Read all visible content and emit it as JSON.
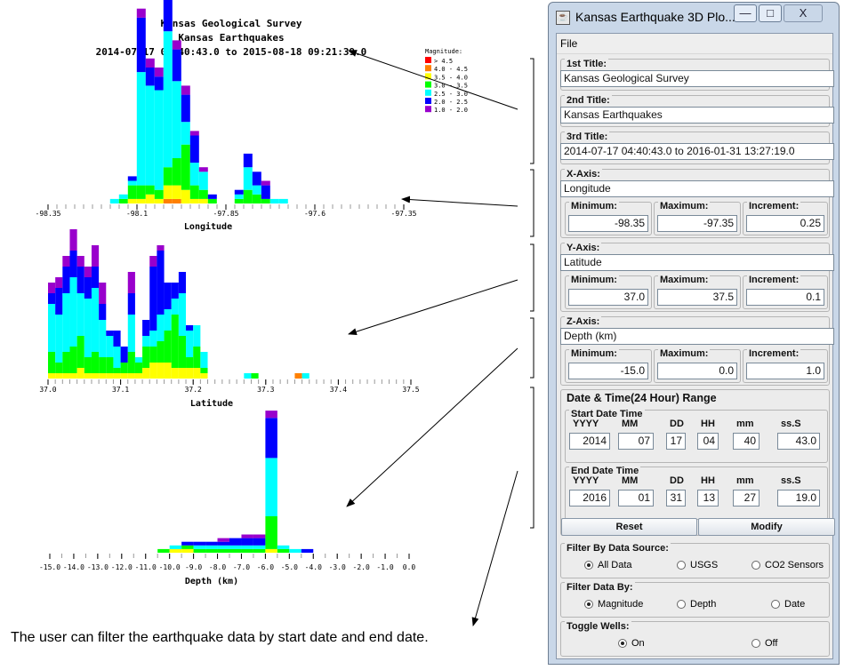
{
  "window": {
    "title": "Kansas Earthquake 3D Plo...",
    "minimize": "—",
    "maximize": "□",
    "close": "X",
    "menu_file": "File"
  },
  "plot_titles": {
    "line1": "Kansas Geological Survey",
    "line2": "Kansas Earthquakes",
    "line3": "2014-07-17 04:40:43.0 to 2015-08-18 09:21:39.0"
  },
  "legend": {
    "title": "Magnitude:",
    "items": [
      {
        "label": "> 4.5",
        "color": "#ff0000"
      },
      {
        "label": "4.0 - 4.5",
        "color": "#ff8000"
      },
      {
        "label": "3.5 - 4.0",
        "color": "#ffff00"
      },
      {
        "label": "3.0 - 3.5",
        "color": "#00ff00"
      },
      {
        "label": "2.5 - 3.0",
        "color": "#00ffff"
      },
      {
        "label": "2.0 - 2.5",
        "color": "#0000ff"
      },
      {
        "label": "1.0 - 2.0",
        "color": "#9900cc"
      }
    ]
  },
  "caption": "The user can filter the earthquake data by start date and end date.",
  "form": {
    "title1": {
      "label": "1st Title:",
      "value": "Kansas Geological Survey"
    },
    "title2": {
      "label": "2nd Title:",
      "value": "Kansas Earthquakes"
    },
    "title3": {
      "label": "3rd Title:",
      "value": "2014-07-17 04:40:43.0 to 2016-01-31 13:27:19.0"
    },
    "x_axis": {
      "label": "X-Axis:",
      "value": "Longitude",
      "min_label": "Minimum:",
      "min": "-98.35",
      "max_label": "Maximum:",
      "max": "-97.35",
      "inc_label": "Increment:",
      "inc": "0.25"
    },
    "y_axis": {
      "label": "Y-Axis:",
      "value": "Latitude",
      "min_label": "Minimum:",
      "min": "37.0",
      "max_label": "Maximum:",
      "max": "37.5",
      "inc_label": "Increment:",
      "inc": "0.1"
    },
    "z_axis": {
      "label": "Z-Axis:",
      "value": "Depth (km)",
      "min_label": "Minimum:",
      "min": "-15.0",
      "max_label": "Maximum:",
      "max": "0.0",
      "inc_label": "Increment:",
      "inc": "1.0"
    },
    "datetime": {
      "label": "Date & Time(24 Hour) Range",
      "start_label": "Start Date Time",
      "end_label": "End Date Time",
      "col_labels": [
        "YYYY",
        "MM",
        "DD",
        "HH",
        "mm",
        "ss.S"
      ],
      "start": [
        "2014",
        "07",
        "17",
        "04",
        "40",
        "43.0"
      ],
      "end": [
        "2016",
        "01",
        "31",
        "13",
        "27",
        "19.0"
      ]
    },
    "reset": "Reset",
    "modify": "Modify",
    "filter_source": {
      "label": "Filter By Data Source:",
      "options": [
        "All Data",
        "USGS",
        "CO2 Sensors"
      ],
      "selected": 0
    },
    "filter_by": {
      "label": "Filter Data By:",
      "options": [
        "Magnitude",
        "Depth",
        "Date"
      ],
      "selected": 0
    },
    "toggle_wells": {
      "label": "Toggle Wells:",
      "options": [
        "On",
        "Off"
      ],
      "selected": 0
    }
  },
  "chart_data": [
    {
      "type": "bar",
      "stacked": true,
      "xlabel": "Longitude",
      "xlim": [
        -98.35,
        -97.35
      ],
      "tick_labels": [
        "-98.35",
        "-98.1",
        "-97.85",
        "-97.6",
        "-97.35"
      ],
      "bin_width": 0.025,
      "series_order": [
        "> 4.5",
        "4.0 - 4.5",
        "3.5 - 4.0",
        "3.0 - 3.5",
        "2.5 - 3.0",
        "2.0 - 2.5",
        "1.0 - 2.0"
      ],
      "bins": [
        {
          "x": -98.163,
          "v": [
            0,
            0,
            0,
            0,
            1,
            0,
            0
          ]
        },
        {
          "x": -98.138,
          "v": [
            0,
            0,
            0,
            1,
            1,
            0,
            0
          ]
        },
        {
          "x": -98.113,
          "v": [
            0,
            0,
            1,
            3,
            1,
            1,
            0
          ]
        },
        {
          "x": -98.088,
          "v": [
            0,
            0,
            1,
            3,
            25,
            12,
            2
          ]
        },
        {
          "x": -98.063,
          "v": [
            0,
            0,
            2,
            2,
            22,
            4,
            2
          ]
        },
        {
          "x": -98.038,
          "v": [
            0,
            0,
            1,
            2,
            22,
            3,
            2
          ]
        },
        {
          "x": -98.013,
          "v": [
            0,
            1,
            3,
            4,
            30,
            12,
            0
          ]
        },
        {
          "x": -97.988,
          "v": [
            0,
            1,
            3,
            6,
            17,
            7,
            2
          ]
        },
        {
          "x": -97.963,
          "v": [
            0,
            0,
            3,
            10,
            5,
            6,
            2
          ]
        },
        {
          "x": -97.938,
          "v": [
            0,
            0,
            1,
            3,
            5,
            6,
            1
          ]
        },
        {
          "x": -97.913,
          "v": [
            0,
            0,
            1,
            2,
            4,
            0,
            1
          ]
        },
        {
          "x": -97.888,
          "v": [
            0,
            0,
            0,
            1,
            0,
            1,
            0
          ]
        },
        {
          "x": -97.813,
          "v": [
            0,
            0,
            0,
            1,
            1,
            1,
            0
          ]
        },
        {
          "x": -97.788,
          "v": [
            0,
            0,
            0,
            3,
            5,
            3,
            0
          ]
        },
        {
          "x": -97.763,
          "v": [
            0,
            0,
            0,
            2,
            2,
            3,
            0
          ]
        },
        {
          "x": -97.738,
          "v": [
            0,
            0,
            0,
            1,
            0,
            3,
            1
          ]
        },
        {
          "x": -97.713,
          "v": [
            0,
            0,
            0,
            0,
            1,
            0,
            0
          ]
        },
        {
          "x": -97.688,
          "v": [
            0,
            0,
            0,
            0,
            1,
            0,
            0
          ]
        }
      ]
    },
    {
      "type": "bar",
      "stacked": true,
      "xlabel": "Latitude",
      "xlim": [
        37.0,
        37.5
      ],
      "tick_labels": [
        "37.0",
        "37.1",
        "37.2",
        "37.3",
        "37.4",
        "37.5"
      ],
      "bin_width": 0.01,
      "series_order": [
        "> 4.5",
        "4.0 - 4.5",
        "3.5 - 4.0",
        "3.0 - 3.5",
        "2.5 - 3.0",
        "2.0 - 2.5",
        "1.0 - 2.0"
      ],
      "bins": [
        {
          "x": 37.005,
          "v": [
            0,
            0,
            1,
            4,
            9,
            2,
            2
          ]
        },
        {
          "x": 37.015,
          "v": [
            0,
            0,
            1,
            2,
            9,
            5,
            2
          ]
        },
        {
          "x": 37.025,
          "v": [
            0,
            0,
            1,
            4,
            11,
            5,
            2
          ]
        },
        {
          "x": 37.035,
          "v": [
            0,
            0,
            1,
            5,
            13,
            5,
            4
          ]
        },
        {
          "x": 37.045,
          "v": [
            0,
            0,
            2,
            6,
            8,
            5,
            2
          ]
        },
        {
          "x": 37.055,
          "v": [
            0,
            0,
            1,
            3,
            11,
            4,
            2
          ]
        },
        {
          "x": 37.065,
          "v": [
            0,
            0,
            1,
            4,
            12,
            4,
            4
          ]
        },
        {
          "x": 37.075,
          "v": [
            0,
            0,
            1,
            3,
            7,
            3,
            4
          ]
        },
        {
          "x": 37.085,
          "v": [
            0,
            0,
            1,
            3,
            4,
            1,
            0
          ]
        },
        {
          "x": 37.095,
          "v": [
            0,
            0,
            1,
            1,
            4,
            3,
            0
          ]
        },
        {
          "x": 37.105,
          "v": [
            0,
            0,
            1,
            2,
            0,
            3,
            0
          ]
        },
        {
          "x": 37.115,
          "v": [
            0,
            0,
            1,
            4,
            7,
            4,
            4
          ]
        },
        {
          "x": 37.125,
          "v": [
            0,
            0,
            1,
            2,
            1,
            0,
            0
          ]
        },
        {
          "x": 37.135,
          "v": [
            0,
            0,
            2,
            4,
            2,
            3,
            0
          ]
        },
        {
          "x": 37.145,
          "v": [
            0,
            0,
            3,
            3,
            3,
            12,
            2
          ]
        },
        {
          "x": 37.155,
          "v": [
            0,
            0,
            3,
            4,
            5,
            12,
            1
          ]
        },
        {
          "x": 37.165,
          "v": [
            0,
            0,
            3,
            6,
            4,
            5,
            0
          ]
        },
        {
          "x": 37.175,
          "v": [
            0,
            0,
            2,
            10,
            3,
            3,
            0
          ]
        },
        {
          "x": 37.185,
          "v": [
            0,
            0,
            2,
            6,
            8,
            4,
            0
          ]
        },
        {
          "x": 37.195,
          "v": [
            0,
            0,
            2,
            2,
            5,
            1,
            0
          ]
        },
        {
          "x": 37.205,
          "v": [
            0,
            0,
            2,
            4,
            4,
            0,
            0
          ]
        },
        {
          "x": 37.215,
          "v": [
            0,
            0,
            1,
            1,
            3,
            0,
            0
          ]
        },
        {
          "x": 37.275,
          "v": [
            0,
            0,
            0,
            0,
            1,
            0,
            0
          ]
        },
        {
          "x": 37.285,
          "v": [
            0,
            0,
            0,
            1,
            0,
            0,
            0
          ]
        },
        {
          "x": 37.345,
          "v": [
            0,
            1,
            0,
            0,
            0,
            0,
            0
          ]
        },
        {
          "x": 37.355,
          "v": [
            0,
            0,
            0,
            0,
            1,
            0,
            0
          ]
        }
      ]
    },
    {
      "type": "bar",
      "stacked": true,
      "xlabel": "Depth (km)",
      "xlim": [
        -15.0,
        0.0
      ],
      "tick_labels": [
        "-15.0",
        "-14.0",
        "-13.0",
        "-12.0",
        "-11.0",
        "-10.0",
        "-9.0",
        "-8.0",
        "-7.0",
        "-6.0",
        "-5.0",
        "-4.0",
        "-3.0",
        "-2.0",
        "-1.0",
        "0.0"
      ],
      "bin_width": 0.5,
      "series_order": [
        "> 4.5",
        "4.0 - 4.5",
        "3.5 - 4.0",
        "3.0 - 3.5",
        "2.5 - 3.0",
        "2.0 - 2.5",
        "1.0 - 2.0"
      ],
      "bins": [
        {
          "x": -10.25,
          "v": [
            0,
            0,
            0,
            1,
            0,
            0,
            0
          ]
        },
        {
          "x": -9.75,
          "v": [
            0,
            0,
            1,
            0,
            1,
            0,
            0
          ]
        },
        {
          "x": -9.25,
          "v": [
            0,
            0,
            1,
            1,
            0,
            1,
            0
          ]
        },
        {
          "x": -8.75,
          "v": [
            0,
            0,
            0,
            1,
            1,
            1,
            0
          ]
        },
        {
          "x": -8.25,
          "v": [
            0,
            0,
            0,
            1,
            1,
            1,
            0
          ]
        },
        {
          "x": -7.75,
          "v": [
            0,
            0,
            0,
            1,
            1,
            1,
            1
          ]
        },
        {
          "x": -7.25,
          "v": [
            0,
            0,
            0,
            1,
            1,
            2,
            0
          ]
        },
        {
          "x": -6.75,
          "v": [
            0,
            0,
            0,
            1,
            1,
            2,
            1
          ]
        },
        {
          "x": -6.25,
          "v": [
            0,
            0,
            0,
            1,
            1,
            2,
            1
          ]
        },
        {
          "x": -5.75,
          "v": [
            0,
            0,
            1,
            9,
            16,
            11,
            2
          ]
        },
        {
          "x": -5.25,
          "v": [
            0,
            0,
            0,
            1,
            1,
            0,
            0
          ]
        },
        {
          "x": -4.75,
          "v": [
            0,
            0,
            0,
            0,
            1,
            0,
            0
          ]
        },
        {
          "x": -4.25,
          "v": [
            0,
            0,
            0,
            0,
            0,
            1,
            0
          ]
        }
      ]
    }
  ]
}
